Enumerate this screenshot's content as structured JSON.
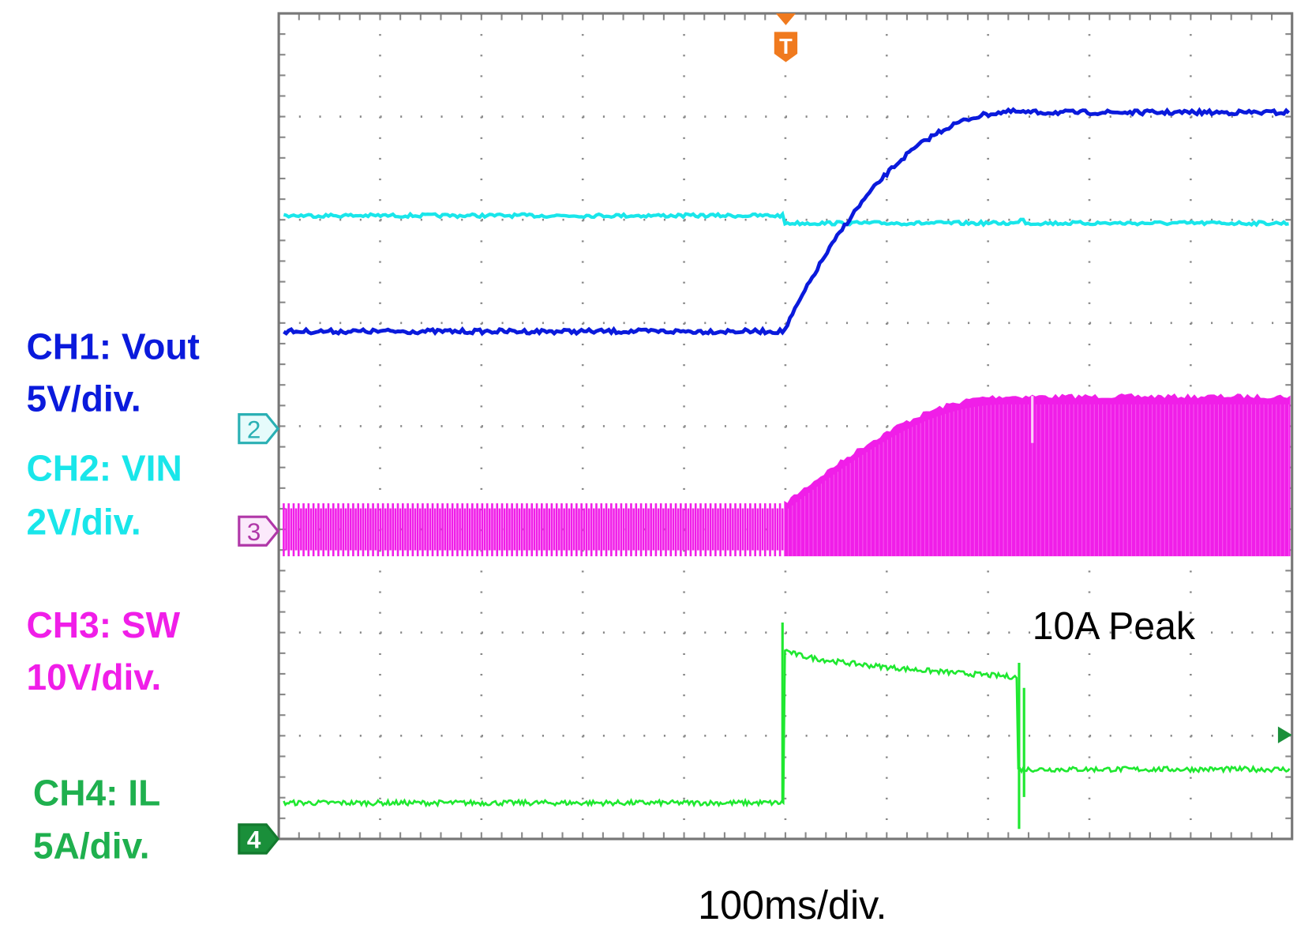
{
  "channels": [
    {
      "label": "CH1: Vout",
      "scale": "5V/div."
    },
    {
      "label": "CH2: VIN",
      "scale": "2V/div."
    },
    {
      "label": "CH3: SW",
      "scale": "10V/div."
    },
    {
      "label": "CH4: IL",
      "scale": "5A/div."
    }
  ],
  "markers": {
    "ch2": "2",
    "ch3": "3",
    "ch4": "4",
    "trigger": "T"
  },
  "annotation": "10A Peak",
  "timebase": "100ms/div."
}
